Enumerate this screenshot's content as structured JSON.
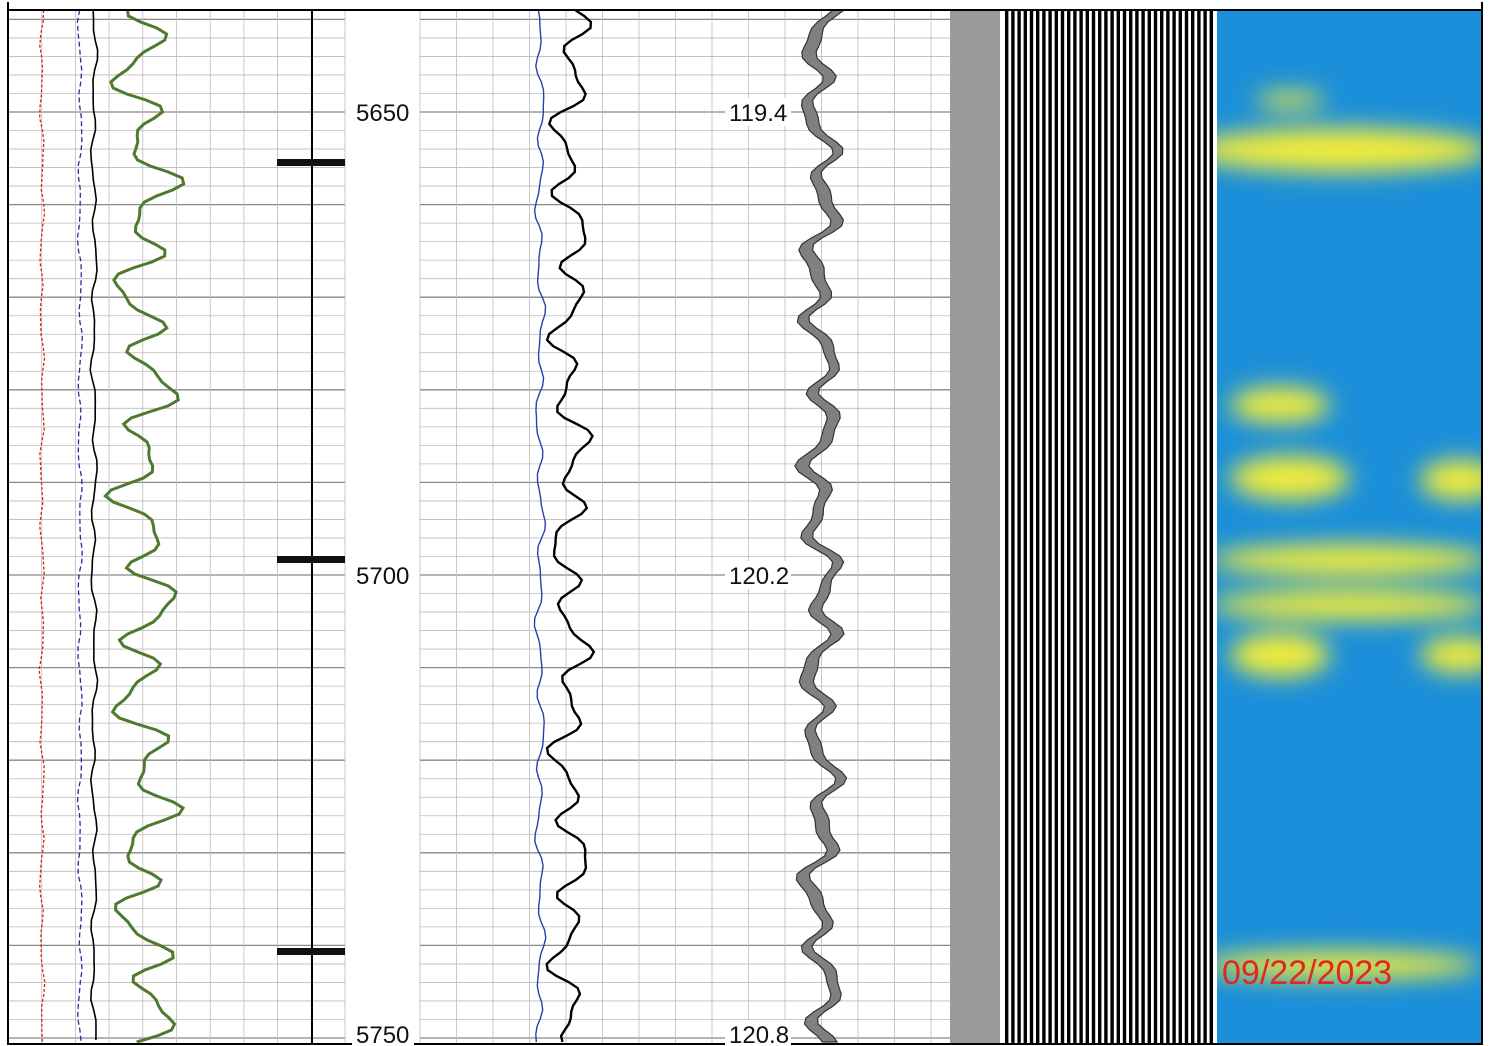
{
  "depth_track": {
    "labels": [
      5650,
      5700,
      5750
    ]
  },
  "value_track": {
    "labels": [
      119.4,
      120.2,
      120.8
    ]
  },
  "stamp": "09/22/2023"
}
